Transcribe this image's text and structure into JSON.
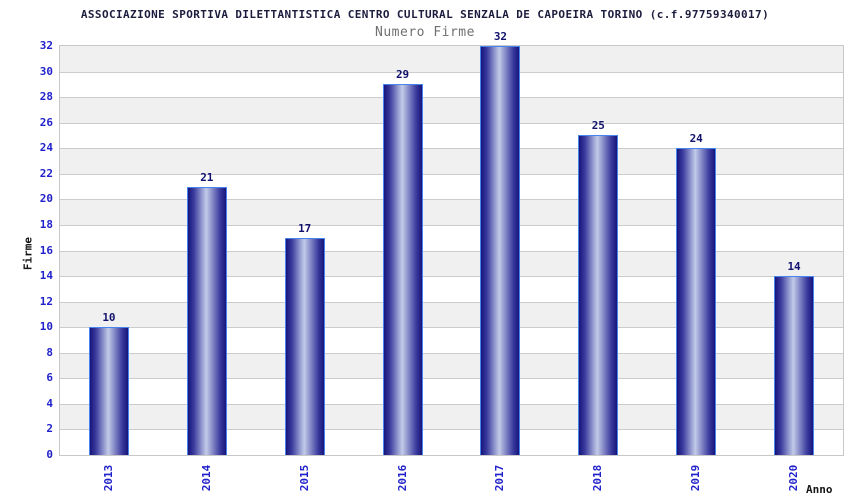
{
  "header": {
    "title": "ASSOCIAZIONE SPORTIVA DILETTANTISTICA CENTRO CULTURAL SENZALA DE CAPOEIRA TORINO (c.f.97759340017)",
    "subtitle": "Numero Firme"
  },
  "axes": {
    "ylabel": "Firme",
    "xlabel": "Anno"
  },
  "chart_data": {
    "type": "bar",
    "title": "ASSOCIAZIONE SPORTIVA DILETTANTISTICA CENTRO CULTURAL SENZALA DE CAPOEIRA TORINO (c.f.97759340017)",
    "subtitle": "Numero Firme",
    "categories": [
      "2013",
      "2014",
      "2015",
      "2016",
      "2017",
      "2018",
      "2019",
      "2020"
    ],
    "values": [
      10,
      21,
      17,
      29,
      32,
      25,
      24,
      14
    ],
    "xlabel": "Anno",
    "ylabel": "Firme",
    "ylim": [
      0,
      32
    ],
    "ytick_step": 2,
    "yticks": [
      0,
      2,
      4,
      6,
      8,
      10,
      12,
      14,
      16,
      18,
      20,
      22,
      24,
      26,
      28,
      30,
      32
    ],
    "grid": true,
    "background_bands": true,
    "legend_position": "none",
    "value_labels_shown": true
  },
  "colors": {
    "background": "#ffffff",
    "title": "#1c1c3e",
    "subtitle": "#707070",
    "axis_label": "#161616",
    "tick_label": "#2222cc",
    "value_label": "#12126e",
    "bar_edge_dark": "#15157b",
    "bar_mid": "#3d3da0",
    "bar_highlight": "#c2cbe8",
    "bar_border": "#4784ee",
    "gridline": "#cccccc",
    "band": "#f0f0f0",
    "plot_border": "#c8c8c8"
  }
}
